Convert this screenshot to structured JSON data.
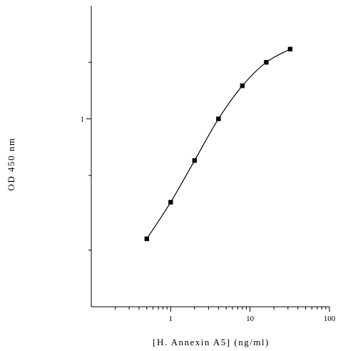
{
  "chart_data": {
    "type": "line",
    "xlabel": "[H. Annexin A5] (ng/ml)",
    "ylabel": "OD 450 nm",
    "x_scale": "log",
    "y_scale": "log",
    "xlim": [
      0.1,
      100
    ],
    "ylim": [
      0.1,
      4
    ],
    "x_ticks": [
      {
        "value": 1,
        "label": "1"
      },
      {
        "value": 10,
        "label": "10"
      },
      {
        "value": 100,
        "label": "100"
      }
    ],
    "y_ticks": [
      {
        "value": 1,
        "label": "1"
      }
    ],
    "grid": false,
    "series": [
      {
        "marker": "square",
        "color": "#000000",
        "x": [
          0.5,
          1,
          2,
          4,
          8,
          16,
          32
        ],
        "y": [
          0.23,
          0.36,
          0.6,
          1.0,
          1.5,
          2.0,
          2.35
        ]
      }
    ]
  }
}
